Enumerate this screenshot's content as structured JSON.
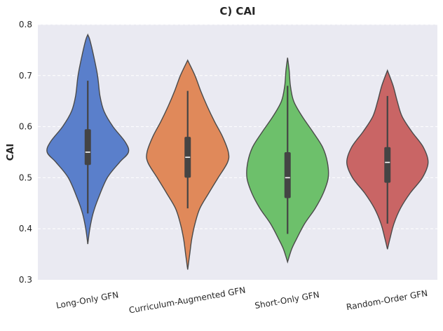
{
  "chart_data": {
    "type": "violin",
    "title": "C) CAI",
    "xlabel": "",
    "ylabel": "CAI",
    "ylim": [
      0.3,
      0.8
    ],
    "yticks": [
      "0.3",
      "0.4",
      "0.5",
      "0.6",
      "0.7",
      "0.8"
    ],
    "grid": true,
    "series": [
      {
        "name": "Long-Only GFN",
        "color": "#5a7fcb",
        "min": 0.37,
        "max": 0.78,
        "whisker_low": 0.43,
        "whisker_high": 0.69,
        "q1": 0.525,
        "median": 0.55,
        "q3": 0.595,
        "profile": [
          [
            0.37,
            0.0
          ],
          [
            0.4,
            0.05
          ],
          [
            0.43,
            0.13
          ],
          [
            0.46,
            0.26
          ],
          [
            0.5,
            0.48
          ],
          [
            0.53,
            0.78
          ],
          [
            0.55,
            1.0
          ],
          [
            0.57,
            0.92
          ],
          [
            0.6,
            0.62
          ],
          [
            0.63,
            0.4
          ],
          [
            0.66,
            0.3
          ],
          [
            0.7,
            0.24
          ],
          [
            0.74,
            0.14
          ],
          [
            0.77,
            0.05
          ],
          [
            0.78,
            0.0
          ]
        ]
      },
      {
        "name": "Curriculum-Augmented GFN",
        "color": "#e0895a",
        "min": 0.32,
        "max": 0.73,
        "whisker_low": 0.44,
        "whisker_high": 0.67,
        "q1": 0.5,
        "median": 0.54,
        "q3": 0.58,
        "profile": [
          [
            0.32,
            0.0
          ],
          [
            0.35,
            0.05
          ],
          [
            0.38,
            0.1
          ],
          [
            0.41,
            0.18
          ],
          [
            0.44,
            0.3
          ],
          [
            0.47,
            0.52
          ],
          [
            0.5,
            0.75
          ],
          [
            0.53,
            0.98
          ],
          [
            0.55,
            1.0
          ],
          [
            0.58,
            0.86
          ],
          [
            0.61,
            0.66
          ],
          [
            0.64,
            0.48
          ],
          [
            0.67,
            0.32
          ],
          [
            0.7,
            0.18
          ],
          [
            0.73,
            0.0
          ]
        ]
      },
      {
        "name": "Short-Only GFN",
        "color": "#6dc06b",
        "min": 0.335,
        "max": 0.735,
        "whisker_low": 0.39,
        "whisker_high": 0.68,
        "q1": 0.46,
        "median": 0.5,
        "q3": 0.55,
        "profile": [
          [
            0.335,
            0.0
          ],
          [
            0.36,
            0.1
          ],
          [
            0.38,
            0.22
          ],
          [
            0.41,
            0.42
          ],
          [
            0.44,
            0.68
          ],
          [
            0.47,
            0.88
          ],
          [
            0.5,
            1.0
          ],
          [
            0.53,
            0.98
          ],
          [
            0.56,
            0.86
          ],
          [
            0.59,
            0.62
          ],
          [
            0.62,
            0.36
          ],
          [
            0.65,
            0.15
          ],
          [
            0.68,
            0.07
          ],
          [
            0.71,
            0.04
          ],
          [
            0.735,
            0.0
          ]
        ]
      },
      {
        "name": "Random-Order GFN",
        "color": "#c96565",
        "min": 0.36,
        "max": 0.71,
        "whisker_low": 0.41,
        "whisker_high": 0.66,
        "q1": 0.49,
        "median": 0.53,
        "q3": 0.56,
        "profile": [
          [
            0.36,
            0.0
          ],
          [
            0.38,
            0.06
          ],
          [
            0.41,
            0.16
          ],
          [
            0.44,
            0.32
          ],
          [
            0.47,
            0.56
          ],
          [
            0.5,
            0.86
          ],
          [
            0.53,
            1.0
          ],
          [
            0.56,
            0.88
          ],
          [
            0.59,
            0.6
          ],
          [
            0.62,
            0.36
          ],
          [
            0.65,
            0.24
          ],
          [
            0.68,
            0.14
          ],
          [
            0.71,
            0.0
          ]
        ]
      }
    ]
  }
}
